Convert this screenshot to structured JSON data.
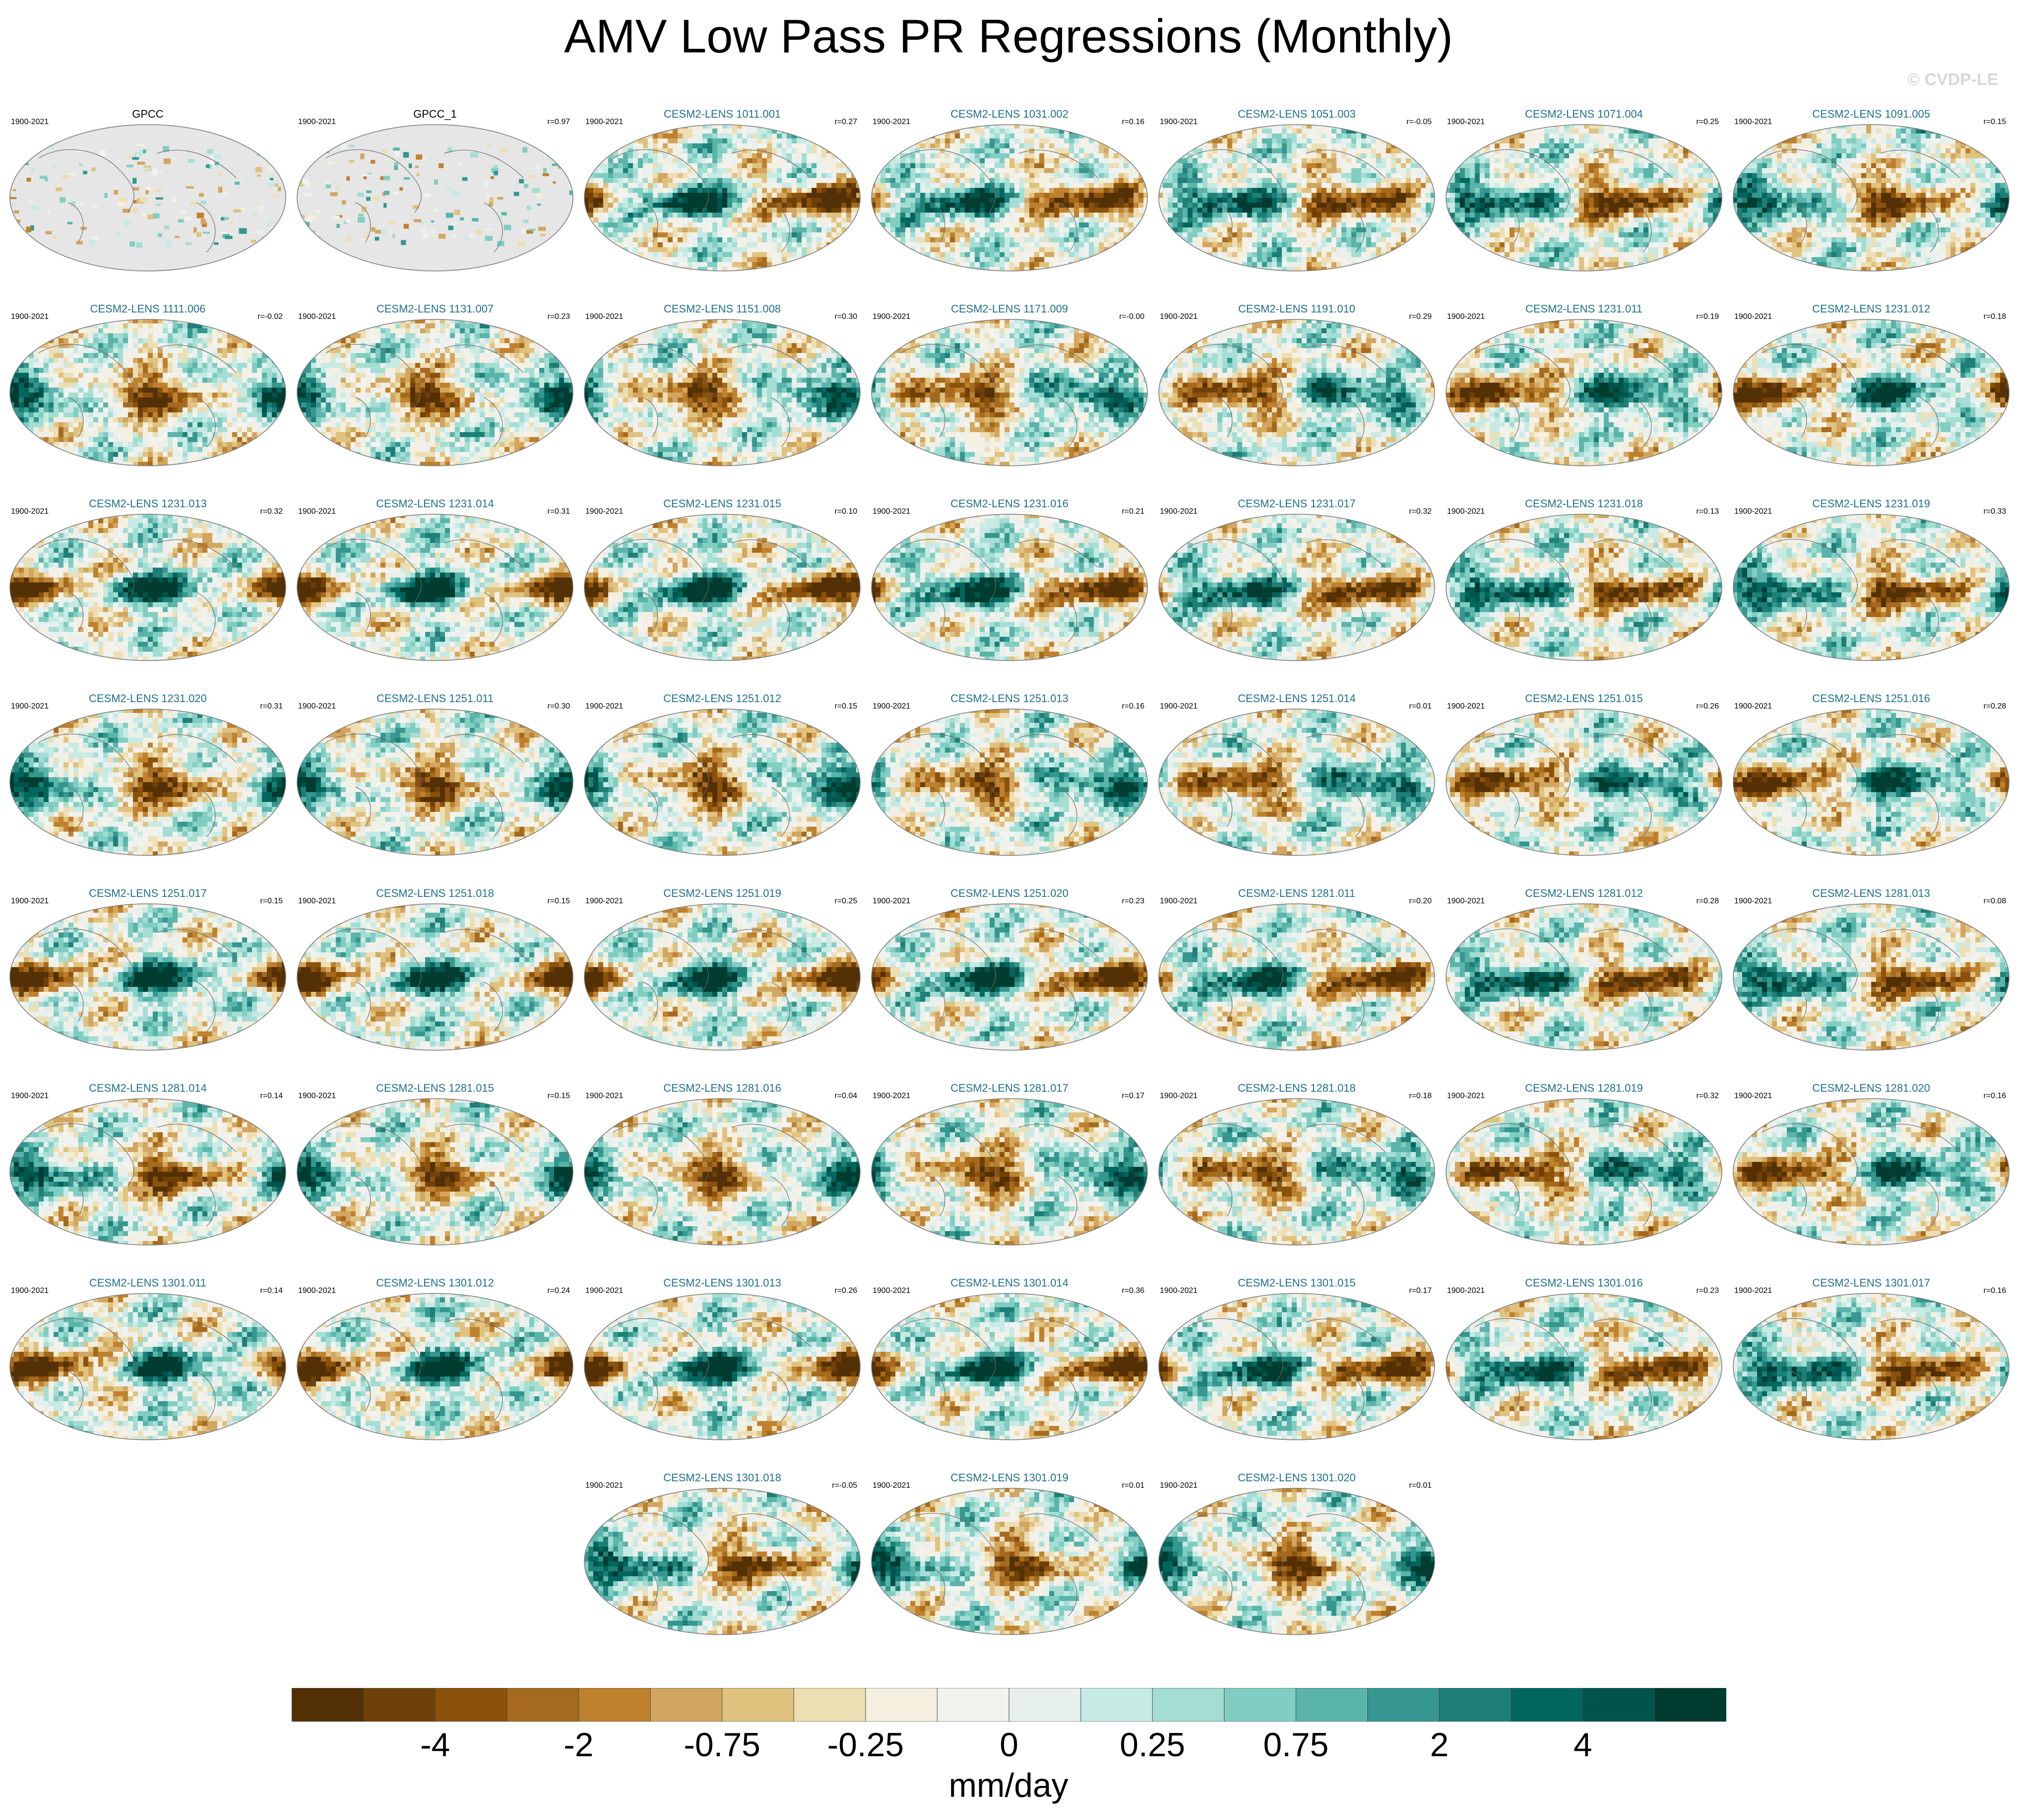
{
  "title": "AMV Low Pass PR Regressions (Monthly)",
  "watermark": "© CVDP-LE",
  "colors": {
    "ocean_land_obs": "#e6e6e6",
    "model_title": "#1f6f86",
    "obs_title": "#000000"
  },
  "chart_data": {
    "type": "heatmap",
    "variable": "PR",
    "units": "mm/day",
    "colorbar": {
      "ticks": [
        "-4",
        "-2",
        "-0.75",
        "-0.25",
        "0",
        "0.25",
        "0.75",
        "2",
        "4"
      ],
      "colors": [
        "#543005",
        "#6f4109",
        "#8c510a",
        "#a56a1d",
        "#bf812d",
        "#d2a660",
        "#dfc27d",
        "#eddeb4",
        "#f5efe0",
        "#f2f2ee",
        "#e8f0ee",
        "#c7eae5",
        "#a3ddd3",
        "#80cdc1",
        "#5ab4aa",
        "#35978f",
        "#1d7f76",
        "#01665e",
        "#01544c",
        "#003c30"
      ]
    },
    "panels": [
      {
        "title": "GPCC",
        "period": "1900-2021",
        "r": "",
        "obs": true
      },
      {
        "title": "GPCC_1",
        "period": "1900-2021",
        "r": "r=0.97",
        "obs": true
      },
      {
        "title": "CESM2-LENS 1011.001",
        "period": "1900-2021",
        "r": "r=0.27"
      },
      {
        "title": "CESM2-LENS 1031.002",
        "period": "1900-2021",
        "r": "r=0.16"
      },
      {
        "title": "CESM2-LENS 1051.003",
        "period": "1900-2021",
        "r": "r=-0.05"
      },
      {
        "title": "CESM2-LENS 1071.004",
        "period": "1900-2021",
        "r": "r=0.25"
      },
      {
        "title": "CESM2-LENS 1091.005",
        "period": "1900-2021",
        "r": "r=0.15"
      },
      {
        "title": "CESM2-LENS 1111.006",
        "period": "1900-2021",
        "r": "r=-0.02"
      },
      {
        "title": "CESM2-LENS 1131.007",
        "period": "1900-2021",
        "r": "r=0.23"
      },
      {
        "title": "CESM2-LENS 1151.008",
        "period": "1900-2021",
        "r": "r=0.30"
      },
      {
        "title": "CESM2-LENS 1171.009",
        "period": "1900-2021",
        "r": "r=-0.00"
      },
      {
        "title": "CESM2-LENS 1191.010",
        "period": "1900-2021",
        "r": "r=0.29"
      },
      {
        "title": "CESM2-LENS 1231.011",
        "period": "1900-2021",
        "r": "r=0.19"
      },
      {
        "title": "CESM2-LENS 1231.012",
        "period": "1900-2021",
        "r": "r=0.18"
      },
      {
        "title": "CESM2-LENS 1231.013",
        "period": "1900-2021",
        "r": "r=0.32"
      },
      {
        "title": "CESM2-LENS 1231.014",
        "period": "1900-2021",
        "r": "r=0.31"
      },
      {
        "title": "CESM2-LENS 1231.015",
        "period": "1900-2021",
        "r": "r=0.10"
      },
      {
        "title": "CESM2-LENS 1231.016",
        "period": "1900-2021",
        "r": "r=0.21"
      },
      {
        "title": "CESM2-LENS 1231.017",
        "period": "1900-2021",
        "r": "r=0.32"
      },
      {
        "title": "CESM2-LENS 1231.018",
        "period": "1900-2021",
        "r": "r=0.13"
      },
      {
        "title": "CESM2-LENS 1231.019",
        "period": "1900-2021",
        "r": "r=0.33"
      },
      {
        "title": "CESM2-LENS 1231.020",
        "period": "1900-2021",
        "r": "r=0.31"
      },
      {
        "title": "CESM2-LENS 1251.011",
        "period": "1900-2021",
        "r": "r=0.30"
      },
      {
        "title": "CESM2-LENS 1251.012",
        "period": "1900-2021",
        "r": "r=0.15"
      },
      {
        "title": "CESM2-LENS 1251.013",
        "period": "1900-2021",
        "r": "r=0.16"
      },
      {
        "title": "CESM2-LENS 1251.014",
        "period": "1900-2021",
        "r": "r=0.01"
      },
      {
        "title": "CESM2-LENS 1251.015",
        "period": "1900-2021",
        "r": "r=0.26"
      },
      {
        "title": "CESM2-LENS 1251.016",
        "period": "1900-2021",
        "r": "r=0.28"
      },
      {
        "title": "CESM2-LENS 1251.017",
        "period": "1900-2021",
        "r": "r=0.15"
      },
      {
        "title": "CESM2-LENS 1251.018",
        "period": "1900-2021",
        "r": "r=0.15"
      },
      {
        "title": "CESM2-LENS 1251.019",
        "period": "1900-2021",
        "r": "r=0.25"
      },
      {
        "title": "CESM2-LENS 1251.020",
        "period": "1900-2021",
        "r": "r=0.23"
      },
      {
        "title": "CESM2-LENS 1281.011",
        "period": "1900-2021",
        "r": "r=0.20"
      },
      {
        "title": "CESM2-LENS 1281.012",
        "period": "1900-2021",
        "r": "r=0.28"
      },
      {
        "title": "CESM2-LENS 1281.013",
        "period": "1900-2021",
        "r": "r=0.08"
      },
      {
        "title": "CESM2-LENS 1281.014",
        "period": "1900-2021",
        "r": "r=0.14"
      },
      {
        "title": "CESM2-LENS 1281.015",
        "period": "1900-2021",
        "r": "r=0.15"
      },
      {
        "title": "CESM2-LENS 1281.016",
        "period": "1900-2021",
        "r": "r=0.04"
      },
      {
        "title": "CESM2-LENS 1281.017",
        "period": "1900-2021",
        "r": "r=0.17"
      },
      {
        "title": "CESM2-LENS 1281.018",
        "period": "1900-2021",
        "r": "r=0.18"
      },
      {
        "title": "CESM2-LENS 1281.019",
        "period": "1900-2021",
        "r": "r=0.32"
      },
      {
        "title": "CESM2-LENS 1281.020",
        "period": "1900-2021",
        "r": "r=0.16"
      },
      {
        "title": "CESM2-LENS 1301.011",
        "period": "1900-2021",
        "r": "r=0.14"
      },
      {
        "title": "CESM2-LENS 1301.012",
        "period": "1900-2021",
        "r": "r=0.24"
      },
      {
        "title": "CESM2-LENS 1301.013",
        "period": "1900-2021",
        "r": "r=0.26"
      },
      {
        "title": "CESM2-LENS 1301.014",
        "period": "1900-2021",
        "r": "r=0.36"
      },
      {
        "title": "CESM2-LENS 1301.015",
        "period": "1900-2021",
        "r": "r=0.17"
      },
      {
        "title": "CESM2-LENS 1301.016",
        "period": "1900-2021",
        "r": "r=0.23"
      },
      {
        "title": "CESM2-LENS 1301.017",
        "period": "1900-2021",
        "r": "r=0.16"
      },
      {
        "title": "CESM2-LENS 1301.018",
        "period": "1900-2021",
        "r": "r=-0.05"
      },
      {
        "title": "CESM2-LENS 1301.019",
        "period": "1900-2021",
        "r": "r=0.01"
      },
      {
        "title": "CESM2-LENS 1301.020",
        "period": "1900-2021",
        "r": "r=0.01"
      }
    ]
  }
}
